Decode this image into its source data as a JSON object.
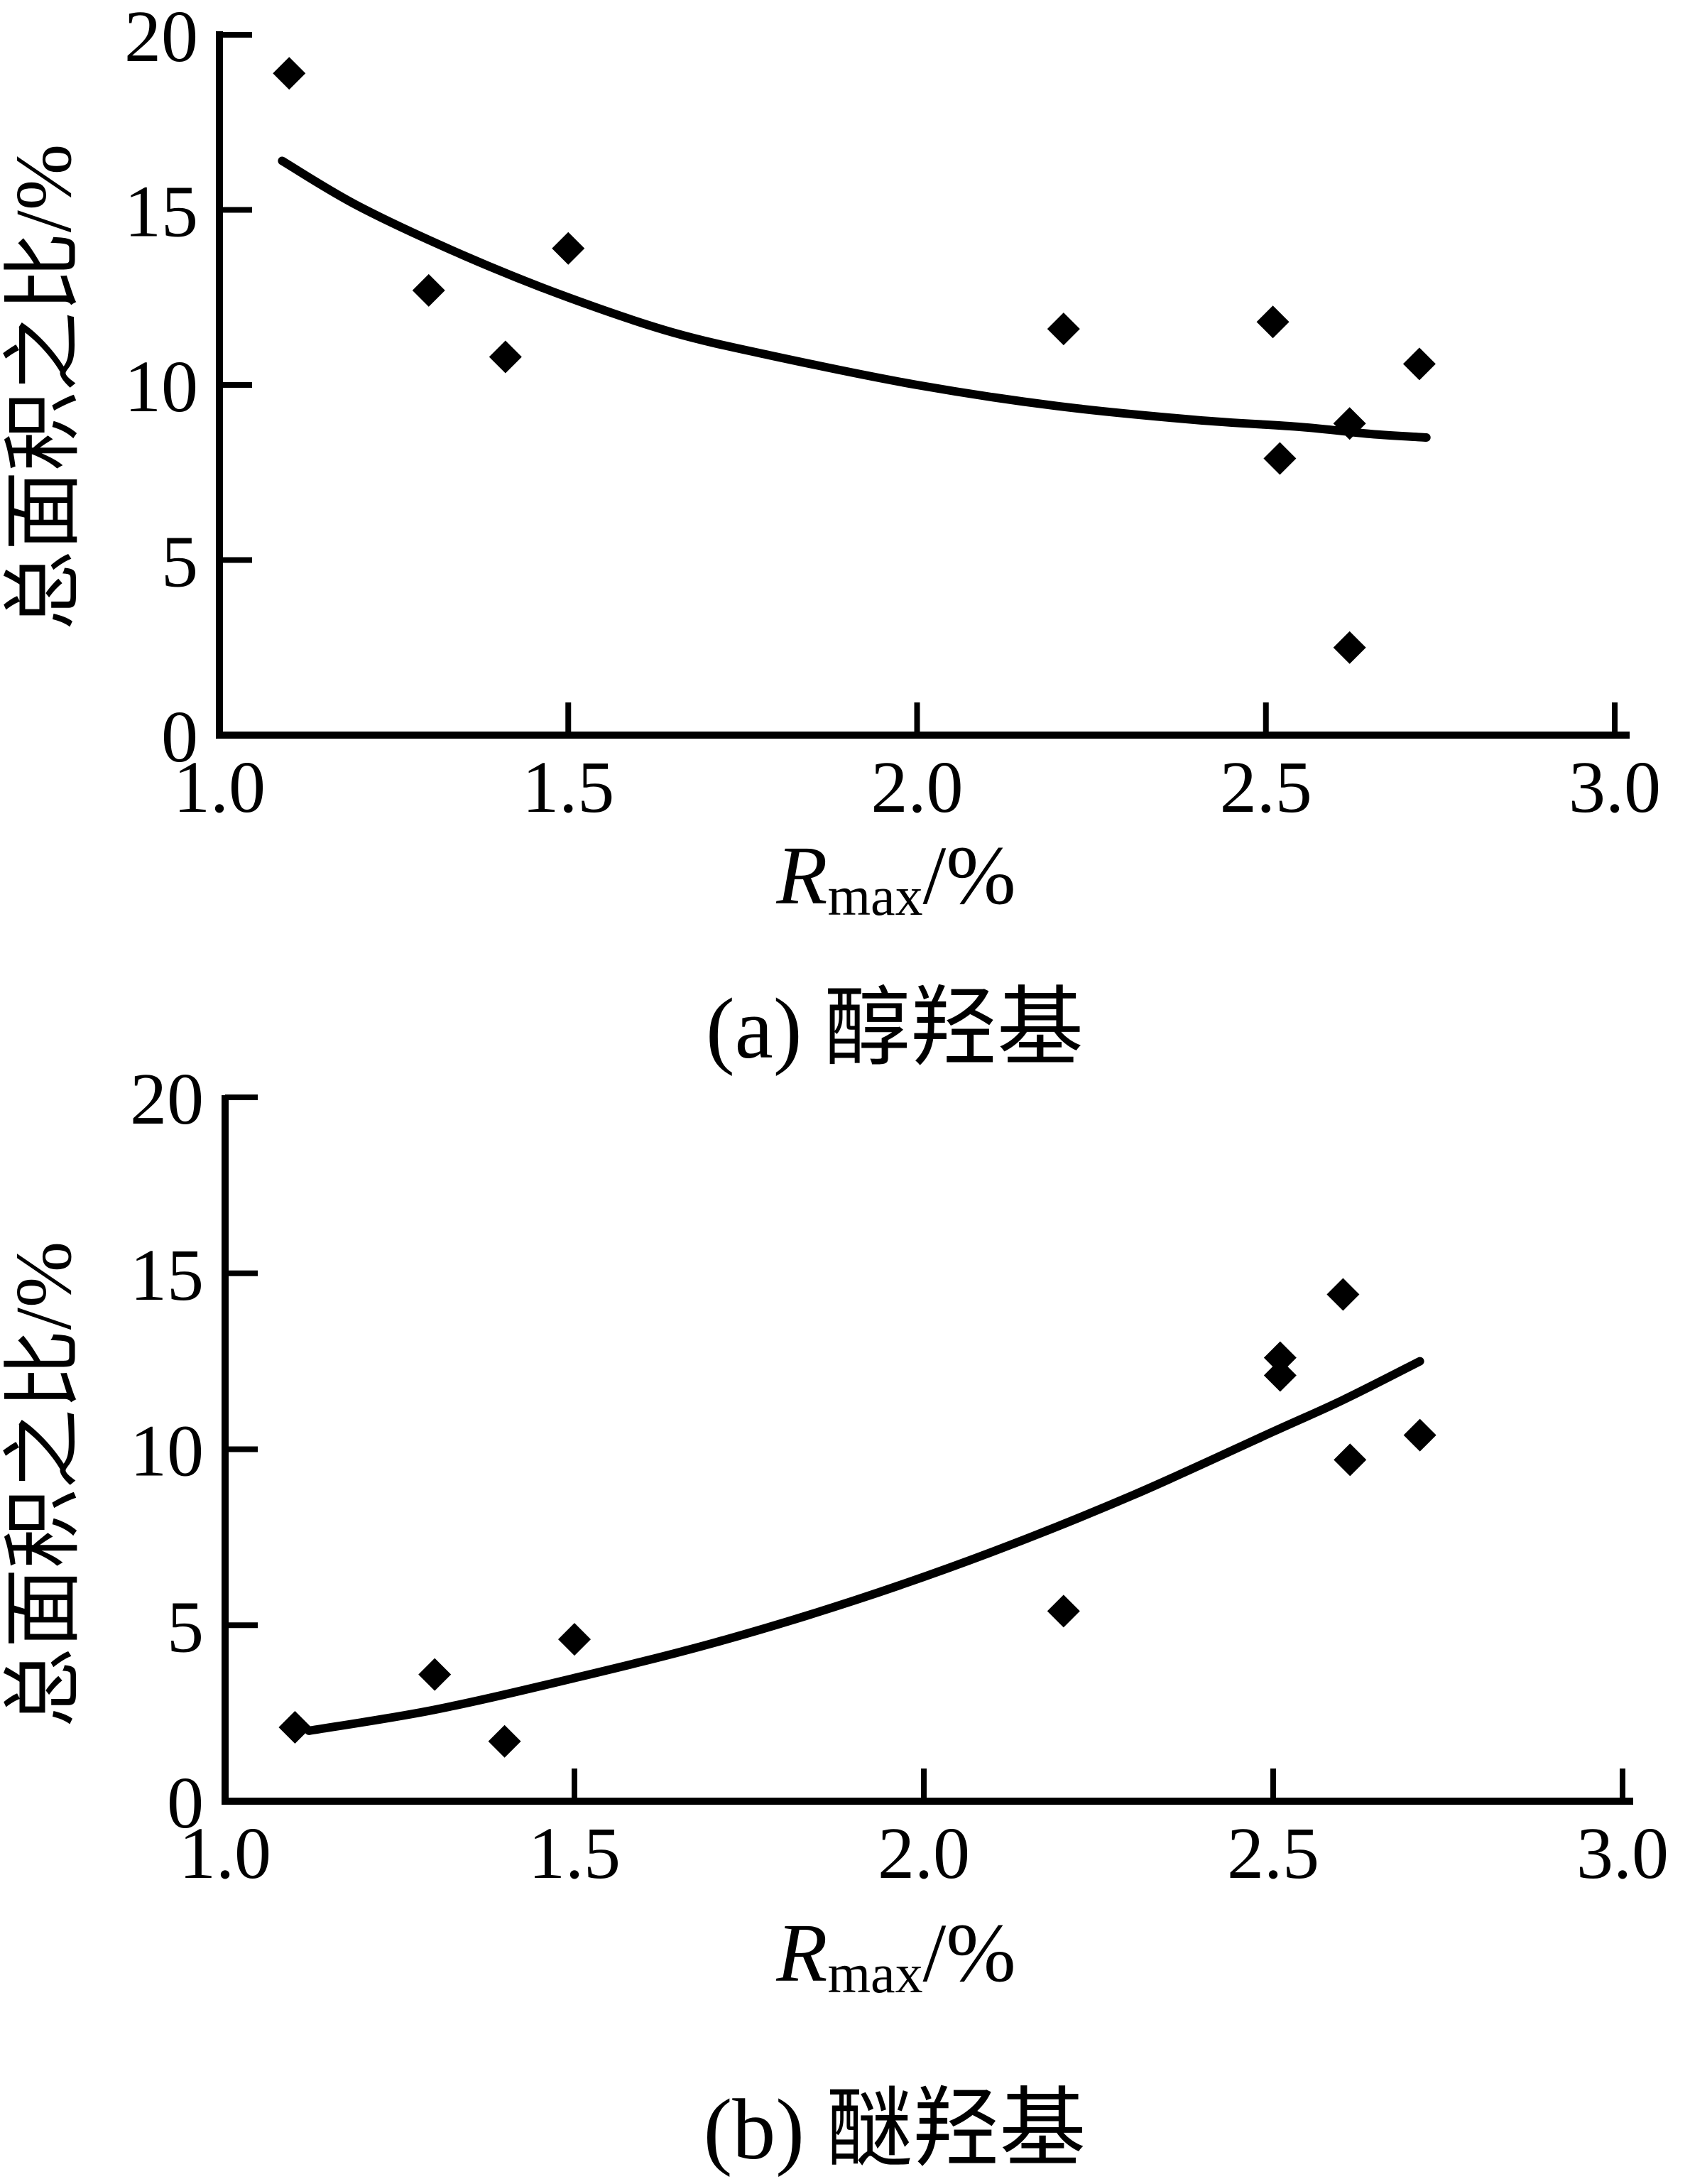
{
  "page": {
    "background_color": "#ffffff",
    "foreground_color": "#000000"
  },
  "chart_data": [
    {
      "type": "scatter",
      "panel": "a",
      "title": "(a) 醇羟基",
      "xlabel": "Rmax/%",
      "xlabel_parts": {
        "symbol": "R",
        "subscript": "max",
        "suffix": "/%"
      },
      "ylabel": "总面积之比/%",
      "xlim": [
        1.0,
        3.0
      ],
      "ylim": [
        0,
        20
      ],
      "x_ticks": [
        1.0,
        1.5,
        2.0,
        2.5,
        3.0
      ],
      "x_tick_labels": [
        "1.0",
        "1.5",
        "2.0",
        "2.5",
        "3.0"
      ],
      "y_ticks": [
        0,
        5,
        10,
        15,
        20
      ],
      "y_tick_labels": [
        "0",
        "5",
        "10",
        "15",
        "20"
      ],
      "grid": false,
      "legend": null,
      "marker": "filled-diamond",
      "marker_color": "#000000",
      "line_color": "#000000",
      "points": [
        [
          1.1,
          18.9
        ],
        [
          1.3,
          12.7
        ],
        [
          1.41,
          10.8
        ],
        [
          1.5,
          13.9
        ],
        [
          2.21,
          11.6
        ],
        [
          2.51,
          11.8
        ],
        [
          2.52,
          7.9
        ],
        [
          2.62,
          8.9
        ],
        [
          2.62,
          2.5
        ],
        [
          2.72,
          10.6
        ]
      ],
      "trend_line": {
        "shape": "decreasing-exponential",
        "points": [
          [
            1.09,
            16.4
          ],
          [
            1.2,
            15.1
          ],
          [
            1.35,
            13.7
          ],
          [
            1.5,
            12.5
          ],
          [
            1.65,
            11.5
          ],
          [
            1.8,
            10.8
          ],
          [
            2.0,
            10.0
          ],
          [
            2.2,
            9.4
          ],
          [
            2.4,
            9.0
          ],
          [
            2.55,
            8.8
          ],
          [
            2.65,
            8.6
          ],
          [
            2.73,
            8.5
          ]
        ]
      }
    },
    {
      "type": "scatter",
      "panel": "b",
      "title": "(b) 醚羟基",
      "xlabel": "Rmax/%",
      "xlabel_parts": {
        "symbol": "R",
        "subscript": "max",
        "suffix": "/%"
      },
      "ylabel": "总面积之比/%",
      "xlim": [
        1.0,
        3.0
      ],
      "ylim": [
        0,
        20
      ],
      "x_ticks": [
        1.0,
        1.5,
        2.0,
        2.5,
        3.0
      ],
      "x_tick_labels": [
        "1.0",
        "1.5",
        "2.0",
        "2.5",
        "3.0"
      ],
      "y_ticks": [
        0,
        5,
        10,
        15,
        20
      ],
      "y_tick_labels": [
        "0",
        "5",
        "10",
        "15",
        "20"
      ],
      "grid": false,
      "legend": null,
      "marker": "filled-diamond",
      "marker_color": "#000000",
      "line_color": "#000000",
      "points": [
        [
          1.1,
          2.1
        ],
        [
          1.3,
          3.6
        ],
        [
          1.4,
          1.7
        ],
        [
          1.5,
          4.6
        ],
        [
          2.2,
          5.4
        ],
        [
          2.51,
          12.6
        ],
        [
          2.51,
          12.1
        ],
        [
          2.6,
          14.4
        ],
        [
          2.61,
          9.7
        ],
        [
          2.71,
          10.4
        ]
      ],
      "trend_line": {
        "shape": "increasing-quadratic",
        "points": [
          [
            1.12,
            2.0
          ],
          [
            1.3,
            2.6
          ],
          [
            1.5,
            3.5
          ],
          [
            1.7,
            4.5
          ],
          [
            1.9,
            5.7
          ],
          [
            2.1,
            7.1
          ],
          [
            2.3,
            8.7
          ],
          [
            2.5,
            10.5
          ],
          [
            2.6,
            11.4
          ],
          [
            2.71,
            12.5
          ]
        ]
      }
    }
  ]
}
